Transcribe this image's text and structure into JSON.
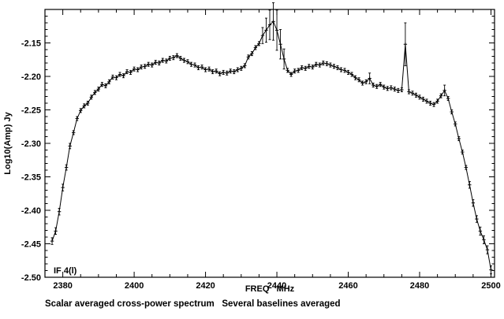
{
  "page": {
    "background": "#ffffff",
    "foreground": "#000000"
  },
  "chart_data": {
    "type": "line",
    "title": "",
    "xlabel": "FREQ   MHz",
    "ylabel": "Log10(Amp) Jy",
    "caption": "Scalar averaged cross-power spectrum   Several baselines averaged",
    "annotation": "IF 4(l)",
    "marker": "plus",
    "line_color": "#000000",
    "grid": false,
    "legend": "none",
    "xlim": [
      2375,
      2501
    ],
    "ylim": [
      -2.5,
      -2.1
    ],
    "xticks": [
      2380,
      2400,
      2420,
      2440,
      2460,
      2480,
      2500
    ],
    "ytick_labels": [
      "-2.15",
      "-2.20",
      "-2.25",
      "-2.30",
      "-2.35",
      "-2.40",
      "-2.45",
      "-2.50"
    ],
    "x": [
      2377,
      2378,
      2379,
      2380,
      2381,
      2382,
      2383,
      2384,
      2385,
      2386,
      2387,
      2388,
      2389,
      2390,
      2391,
      2392,
      2393,
      2394,
      2395,
      2396,
      2397,
      2398,
      2399,
      2400,
      2401,
      2402,
      2403,
      2404,
      2405,
      2406,
      2407,
      2408,
      2409,
      2410,
      2411,
      2412,
      2413,
      2414,
      2415,
      2416,
      2417,
      2418,
      2419,
      2420,
      2421,
      2422,
      2423,
      2424,
      2425,
      2426,
      2427,
      2428,
      2429,
      2430,
      2431,
      2432,
      2433,
      2434,
      2435,
      2436,
      2437,
      2438,
      2439,
      2440,
      2441,
      2442,
      2443,
      2444,
      2445,
      2446,
      2447,
      2448,
      2449,
      2450,
      2451,
      2452,
      2453,
      2454,
      2455,
      2456,
      2457,
      2458,
      2459,
      2460,
      2461,
      2462,
      2463,
      2464,
      2465,
      2466,
      2467,
      2468,
      2469,
      2470,
      2471,
      2472,
      2473,
      2474,
      2475,
      2476,
      2477,
      2478,
      2479,
      2480,
      2481,
      2482,
      2483,
      2484,
      2485,
      2486,
      2487,
      2488,
      2489,
      2490,
      2491,
      2492,
      2493,
      2494,
      2495,
      2496,
      2497,
      2498,
      2499,
      2500
    ],
    "y": [
      -2.446,
      -2.431,
      -2.402,
      -2.366,
      -2.336,
      -2.304,
      -2.284,
      -2.263,
      -2.251,
      -2.244,
      -2.24,
      -2.231,
      -2.224,
      -2.219,
      -2.212,
      -2.214,
      -2.208,
      -2.201,
      -2.202,
      -2.197,
      -2.199,
      -2.193,
      -2.194,
      -2.189,
      -2.19,
      -2.186,
      -2.185,
      -2.182,
      -2.183,
      -2.179,
      -2.18,
      -2.176,
      -2.177,
      -2.173,
      -2.172,
      -2.169,
      -2.173,
      -2.176,
      -2.178,
      -2.182,
      -2.183,
      -2.187,
      -2.186,
      -2.19,
      -2.189,
      -2.193,
      -2.192,
      -2.196,
      -2.194,
      -2.195,
      -2.192,
      -2.193,
      -2.19,
      -2.188,
      -2.184,
      -2.171,
      -2.166,
      -2.157,
      -2.151,
      -2.139,
      -2.131,
      -2.123,
      -2.118,
      -2.131,
      -2.152,
      -2.174,
      -2.191,
      -2.197,
      -2.192,
      -2.191,
      -2.187,
      -2.188,
      -2.185,
      -2.186,
      -2.182,
      -2.183,
      -2.18,
      -2.181,
      -2.183,
      -2.185,
      -2.187,
      -2.19,
      -2.191,
      -2.194,
      -2.197,
      -2.202,
      -2.205,
      -2.21,
      -2.208,
      -2.203,
      -2.213,
      -2.215,
      -2.212,
      -2.216,
      -2.218,
      -2.217,
      -2.219,
      -2.221,
      -2.22,
      -2.152,
      -2.223,
      -2.225,
      -2.228,
      -2.231,
      -2.234,
      -2.237,
      -2.24,
      -2.242,
      -2.237,
      -2.229,
      -2.221,
      -2.233,
      -2.253,
      -2.271,
      -2.293,
      -2.313,
      -2.336,
      -2.362,
      -2.389,
      -2.413,
      -2.431,
      -2.444,
      -2.459,
      -2.489
    ],
    "yerr": [
      0.005,
      0.005,
      0.005,
      0.005,
      0.004,
      0.004,
      0.003,
      0.003,
      0.003,
      0.003,
      0.003,
      0.003,
      0.003,
      0.003,
      0.003,
      0.003,
      0.003,
      0.003,
      0.003,
      0.003,
      0.003,
      0.003,
      0.003,
      0.003,
      0.003,
      0.003,
      0.003,
      0.003,
      0.003,
      0.003,
      0.003,
      0.003,
      0.003,
      0.003,
      0.003,
      0.003,
      0.003,
      0.003,
      0.003,
      0.003,
      0.003,
      0.003,
      0.003,
      0.003,
      0.003,
      0.003,
      0.003,
      0.003,
      0.003,
      0.003,
      0.003,
      0.003,
      0.003,
      0.003,
      0.003,
      0.003,
      0.003,
      0.003,
      0.003,
      0.012,
      0.018,
      0.022,
      0.028,
      0.03,
      0.022,
      0.015,
      0.003,
      0.003,
      0.003,
      0.003,
      0.003,
      0.003,
      0.003,
      0.003,
      0.003,
      0.003,
      0.003,
      0.003,
      0.003,
      0.003,
      0.003,
      0.003,
      0.003,
      0.003,
      0.003,
      0.003,
      0.003,
      0.003,
      0.003,
      0.008,
      0.003,
      0.003,
      0.003,
      0.003,
      0.003,
      0.003,
      0.003,
      0.003,
      0.003,
      0.032,
      0.003,
      0.003,
      0.003,
      0.003,
      0.003,
      0.003,
      0.003,
      0.003,
      0.003,
      0.003,
      0.008,
      0.003,
      0.003,
      0.003,
      0.003,
      0.003,
      0.003,
      0.005,
      0.005,
      0.005,
      0.006,
      0.006,
      0.006,
      0.006
    ]
  }
}
